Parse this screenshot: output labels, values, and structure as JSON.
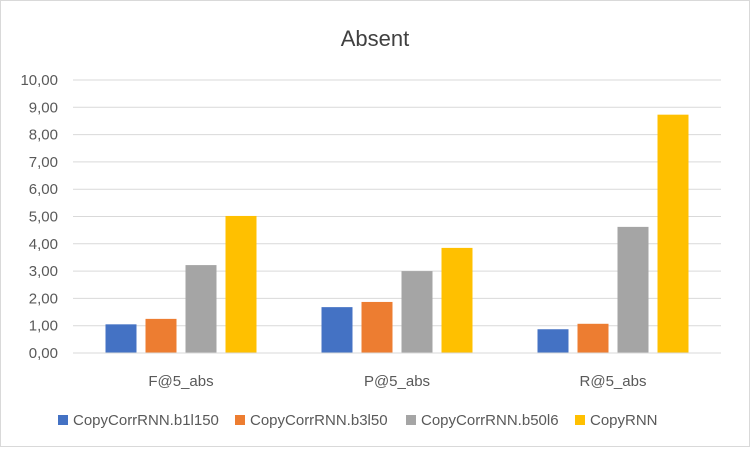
{
  "chart_data": {
    "type": "bar",
    "title": "Absent",
    "xlabel": "",
    "ylabel": "",
    "categories": [
      "F@5_abs",
      "P@5_abs",
      "R@5_abs"
    ],
    "series": [
      {
        "name": "CopyCorrRNN.b1l150",
        "color": "#4472C4",
        "values": [
          1.05,
          1.68,
          0.87
        ]
      },
      {
        "name": "CopyCorrRNN.b3l50",
        "color": "#ED7D31",
        "values": [
          1.25,
          1.87,
          1.07
        ]
      },
      {
        "name": "CopyCorrRNN.b50l6",
        "color": "#A5A5A5",
        "values": [
          3.22,
          3.0,
          4.62
        ]
      },
      {
        "name": "CopyRNN",
        "color": "#FFC000",
        "values": [
          5.02,
          3.85,
          8.73
        ]
      }
    ],
    "ylim": [
      0,
      10
    ],
    "yticks": [
      "0,00",
      "1,00",
      "2,00",
      "3,00",
      "4,00",
      "5,00",
      "6,00",
      "7,00",
      "8,00",
      "9,00",
      "10,00"
    ],
    "grid": true,
    "legend_position": "bottom"
  }
}
